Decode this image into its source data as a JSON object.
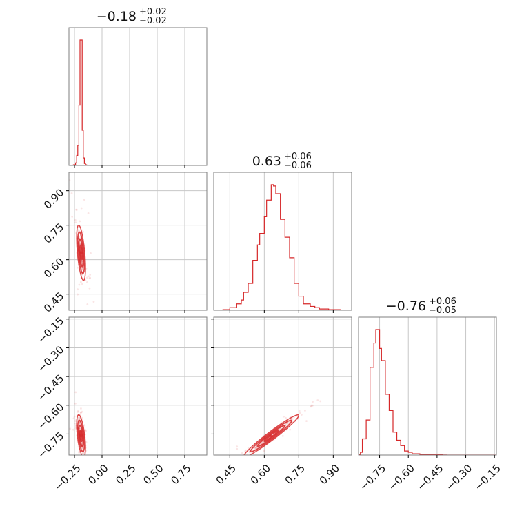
{
  "chart_data": {
    "type": "corner",
    "color": "#d62728",
    "grid": true,
    "parameters": [
      {
        "title_value": "−0.18",
        "title_plus": "+0.02",
        "title_minus": "−0.02",
        "median": -0.18,
        "err_plus": 0.02,
        "err_minus": 0.02
      },
      {
        "title_value": "0.63",
        "title_plus": "+0.06",
        "title_minus": "−0.06",
        "median": 0.63,
        "err_plus": 0.06,
        "err_minus": 0.06
      },
      {
        "title_value": "−0.76",
        "title_plus": "+0.06",
        "title_minus": "−0.05",
        "median": -0.76,
        "err_plus": 0.06,
        "err_minus": 0.05
      }
    ],
    "axes": [
      {
        "lim": [
          -0.3,
          0.95
        ],
        "ticks": [
          -0.25,
          0.0,
          0.25,
          0.5,
          0.75
        ],
        "tick_labels": [
          "−0.25",
          "0.00",
          "0.25",
          "0.50",
          "0.75"
        ]
      },
      {
        "lim": [
          0.38,
          0.98
        ],
        "ticks": [
          0.45,
          0.6,
          0.75,
          0.9
        ],
        "tick_labels": [
          "0.45",
          "0.60",
          "0.75",
          "0.90"
        ]
      },
      {
        "lim": [
          -0.86,
          -0.14
        ],
        "ticks": [
          -0.75,
          -0.6,
          -0.45,
          -0.3,
          -0.15
        ],
        "tick_labels": [
          "−0.75",
          "−0.60",
          "−0.45",
          "−0.30",
          "−0.15"
        ]
      }
    ],
    "histograms": [
      {
        "param": 0,
        "bins": [
          -0.26,
          -0.24,
          -0.23,
          -0.22,
          -0.21,
          -0.2,
          -0.19,
          -0.18,
          -0.17,
          -0.16,
          -0.15,
          -0.14,
          -0.13,
          -0.12,
          0.95
        ],
        "counts": [
          0.5,
          2,
          8,
          16,
          48,
          100,
          100,
          28,
          6,
          1.5,
          0.5,
          0,
          0,
          0
        ]
      },
      {
        "param": 1,
        "bins": [
          0.38,
          0.42,
          0.45,
          0.46,
          0.47,
          0.48,
          0.49,
          0.5,
          0.51,
          0.52,
          0.53,
          0.54,
          0.55,
          0.56,
          0.57,
          0.58,
          0.59,
          0.6,
          0.61,
          0.62,
          0.63,
          0.64,
          0.65,
          0.66,
          0.67,
          0.68,
          0.69,
          0.7,
          0.71,
          0.72,
          0.73,
          0.74,
          0.75,
          0.76,
          0.77,
          0.78,
          0.8,
          0.82,
          0.84,
          0.88,
          0.9,
          0.93,
          0.98
        ],
        "counts": [
          0,
          0.5,
          2,
          2,
          2,
          5,
          5,
          8,
          14,
          14,
          21,
          21,
          39,
          39,
          51,
          60,
          60,
          73,
          86,
          86,
          98,
          97,
          91,
          91,
          71,
          71,
          57,
          57,
          41,
          41,
          21,
          21,
          11,
          11,
          5,
          5,
          3,
          2,
          1,
          0.5,
          0.5,
          0
        ]
      },
      {
        "param": 2,
        "bins": [
          -0.86,
          -0.85,
          -0.84,
          -0.83,
          -0.82,
          -0.81,
          -0.8,
          -0.79,
          -0.78,
          -0.77,
          -0.76,
          -0.75,
          -0.74,
          -0.73,
          -0.72,
          -0.71,
          -0.7,
          -0.69,
          -0.68,
          -0.67,
          -0.66,
          -0.65,
          -0.64,
          -0.63,
          -0.62,
          -0.61,
          -0.6,
          -0.59,
          -0.58,
          -0.56,
          -0.54,
          -0.52,
          -0.5,
          -0.48,
          -0.46,
          -0.44,
          -0.42,
          -0.4,
          -0.14
        ],
        "counts": [
          0.5,
          2,
          12,
          12,
          26,
          26,
          65,
          65,
          83,
          93,
          93,
          79,
          70,
          70,
          45,
          45,
          33,
          33,
          17,
          17,
          11,
          11,
          7,
          7,
          3,
          3,
          2,
          2,
          1,
          1,
          0.5,
          0.5,
          0.5,
          0.2,
          0.2,
          0.2,
          0.1,
          0
        ]
      }
    ],
    "scatter_2d": [
      {
        "x_param": 0,
        "y_param": 1,
        "mean": [
          -0.19,
          0.63
        ],
        "sd": [
          0.02,
          0.06
        ],
        "corr": -0.55,
        "contour_levels": [
          0.5,
          1.0,
          1.5,
          2.0
        ]
      },
      {
        "x_param": 0,
        "y_param": 2,
        "mean": [
          -0.19,
          -0.76
        ],
        "sd": [
          0.02,
          0.055
        ],
        "corr": -0.55,
        "contour_levels": [
          0.5,
          1.0,
          1.5,
          2.0
        ]
      },
      {
        "x_param": 1,
        "y_param": 2,
        "mean": [
          0.63,
          -0.76
        ],
        "sd": [
          0.06,
          0.055
        ],
        "corr": 0.97,
        "contour_levels": [
          0.5,
          1.0,
          1.5,
          2.0
        ]
      }
    ]
  }
}
